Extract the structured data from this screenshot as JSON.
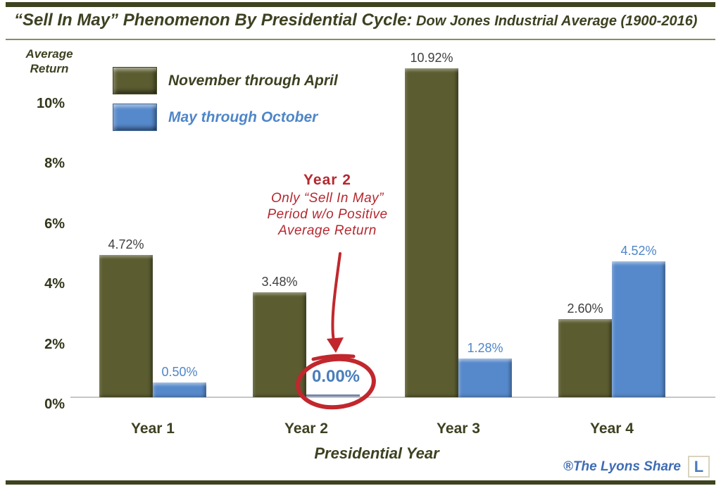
{
  "header": {
    "title_main": "“Sell In May” Phenomenon By Presidential Cycle:",
    "title_sub": " Dow Jones Industrial Average (1900-2016)"
  },
  "chart_data": {
    "type": "bar",
    "title": "“Sell In May” Phenomenon By Presidential Cycle: Dow Jones Industrial Average (1900-2016)",
    "xlabel": "Presidential Year",
    "ylabel": "Average Return",
    "categories": [
      "Year 1",
      "Year 2",
      "Year 3",
      "Year 4"
    ],
    "series": [
      {
        "name": "November through April",
        "color": "#5b5c30",
        "values": [
          4.72,
          3.48,
          10.92,
          2.6
        ],
        "labels": [
          "4.72%",
          "3.48%",
          "10.92%",
          "2.60%"
        ]
      },
      {
        "name": "May through October",
        "color": "#5689cb",
        "values": [
          0.5,
          0.0,
          1.28,
          4.52
        ],
        "labels": [
          "0.50%",
          "0.00%",
          "1.28%",
          "4.52%"
        ]
      }
    ],
    "yticks": {
      "values": [
        0,
        2,
        4,
        6,
        8,
        10
      ],
      "labels": [
        "0%",
        "2%",
        "4%",
        "6%",
        "8%",
        "10%"
      ]
    },
    "ylim": [
      0,
      11
    ],
    "grid": false,
    "legend_position": "top-left"
  },
  "annotation": {
    "heading": "Year 2",
    "lines": [
      "Only “Sell In May”",
      "Period w/o Positive",
      "Average Return"
    ],
    "color": "#b5282f"
  },
  "colors": {
    "olive_bar": "#5b5c30",
    "blue_bar": "#5689cb",
    "dark_olive_text": "#3e4121",
    "blue_text": "#4f86c8",
    "annotation_red": "#c1272d",
    "border_olive": "#3f431f"
  },
  "footer": {
    "brand": "®The Lyons Share",
    "logo_letter": "L"
  }
}
